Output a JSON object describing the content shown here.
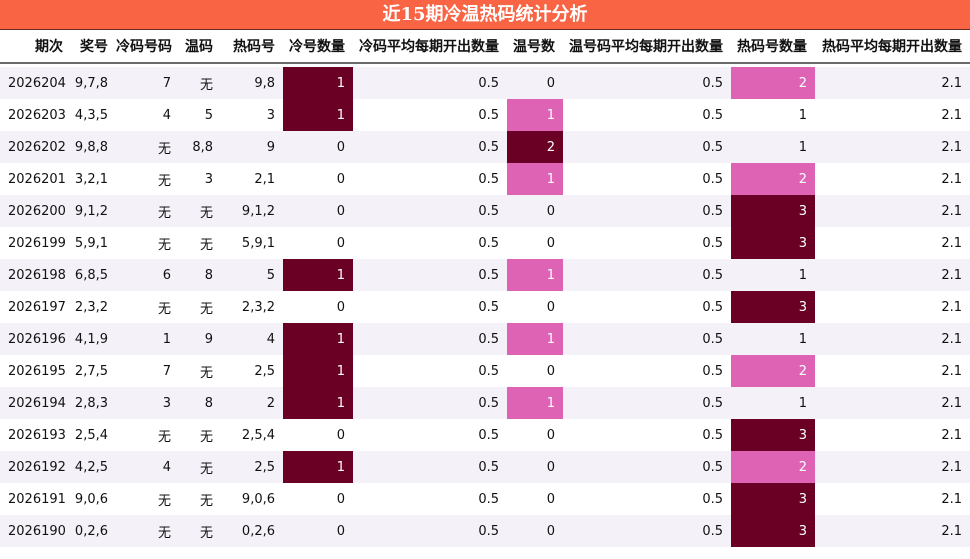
{
  "title": "近15期冷温热码统计分析",
  "colors": {
    "title_bg": "#f86444",
    "dark_highlight": "#6b0025",
    "pink_highlight": "#de63b4",
    "stripe": "#f4f2f8"
  },
  "headers": [
    "期次",
    "奖号",
    "冷码号码",
    "温码",
    "热码号",
    "冷号数量",
    "冷码平均每期开出数量",
    "温号数",
    "温号码平均每期开出数量",
    "热码号数量",
    "热码平均每期开出数量"
  ],
  "rows": [
    {
      "period": "2026204",
      "award": "9,7,8",
      "cold": "7",
      "warm": "无",
      "hot": "9,8",
      "cold_count": "1",
      "cold_avg": "0.5",
      "warm_count": "0",
      "warm_avg": "0.5",
      "hot_count": "2",
      "hot_avg": "2.1"
    },
    {
      "period": "2026203",
      "award": "4,3,5",
      "cold": "4",
      "warm": "5",
      "hot": "3",
      "cold_count": "1",
      "cold_avg": "0.5",
      "warm_count": "1",
      "warm_avg": "0.5",
      "hot_count": "1",
      "hot_avg": "2.1"
    },
    {
      "period": "2026202",
      "award": "9,8,8",
      "cold": "无",
      "warm": "8,8",
      "hot": "9",
      "cold_count": "0",
      "cold_avg": "0.5",
      "warm_count": "2",
      "warm_avg": "0.5",
      "hot_count": "1",
      "hot_avg": "2.1"
    },
    {
      "period": "2026201",
      "award": "3,2,1",
      "cold": "无",
      "warm": "3",
      "hot": "2,1",
      "cold_count": "0",
      "cold_avg": "0.5",
      "warm_count": "1",
      "warm_avg": "0.5",
      "hot_count": "2",
      "hot_avg": "2.1"
    },
    {
      "period": "2026200",
      "award": "9,1,2",
      "cold": "无",
      "warm": "无",
      "hot": "9,1,2",
      "cold_count": "0",
      "cold_avg": "0.5",
      "warm_count": "0",
      "warm_avg": "0.5",
      "hot_count": "3",
      "hot_avg": "2.1"
    },
    {
      "period": "2026199",
      "award": "5,9,1",
      "cold": "无",
      "warm": "无",
      "hot": "5,9,1",
      "cold_count": "0",
      "cold_avg": "0.5",
      "warm_count": "0",
      "warm_avg": "0.5",
      "hot_count": "3",
      "hot_avg": "2.1"
    },
    {
      "period": "2026198",
      "award": "6,8,5",
      "cold": "6",
      "warm": "8",
      "hot": "5",
      "cold_count": "1",
      "cold_avg": "0.5",
      "warm_count": "1",
      "warm_avg": "0.5",
      "hot_count": "1",
      "hot_avg": "2.1"
    },
    {
      "period": "2026197",
      "award": "2,3,2",
      "cold": "无",
      "warm": "无",
      "hot": "2,3,2",
      "cold_count": "0",
      "cold_avg": "0.5",
      "warm_count": "0",
      "warm_avg": "0.5",
      "hot_count": "3",
      "hot_avg": "2.1"
    },
    {
      "period": "2026196",
      "award": "4,1,9",
      "cold": "1",
      "warm": "9",
      "hot": "4",
      "cold_count": "1",
      "cold_avg": "0.5",
      "warm_count": "1",
      "warm_avg": "0.5",
      "hot_count": "1",
      "hot_avg": "2.1"
    },
    {
      "period": "2026195",
      "award": "2,7,5",
      "cold": "7",
      "warm": "无",
      "hot": "2,5",
      "cold_count": "1",
      "cold_avg": "0.5",
      "warm_count": "0",
      "warm_avg": "0.5",
      "hot_count": "2",
      "hot_avg": "2.1"
    },
    {
      "period": "2026194",
      "award": "2,8,3",
      "cold": "3",
      "warm": "8",
      "hot": "2",
      "cold_count": "1",
      "cold_avg": "0.5",
      "warm_count": "1",
      "warm_avg": "0.5",
      "hot_count": "1",
      "hot_avg": "2.1"
    },
    {
      "period": "2026193",
      "award": "2,5,4",
      "cold": "无",
      "warm": "无",
      "hot": "2,5,4",
      "cold_count": "0",
      "cold_avg": "0.5",
      "warm_count": "0",
      "warm_avg": "0.5",
      "hot_count": "3",
      "hot_avg": "2.1"
    },
    {
      "period": "2026192",
      "award": "4,2,5",
      "cold": "4",
      "warm": "无",
      "hot": "2,5",
      "cold_count": "1",
      "cold_avg": "0.5",
      "warm_count": "0",
      "warm_avg": "0.5",
      "hot_count": "2",
      "hot_avg": "2.1"
    },
    {
      "period": "2026191",
      "award": "9,0,6",
      "cold": "无",
      "warm": "无",
      "hot": "9,0,6",
      "cold_count": "0",
      "cold_avg": "0.5",
      "warm_count": "0",
      "warm_avg": "0.5",
      "hot_count": "3",
      "hot_avg": "2.1"
    },
    {
      "period": "2026190",
      "award": "0,2,6",
      "cold": "无",
      "warm": "无",
      "hot": "0,2,6",
      "cold_count": "0",
      "cold_avg": "0.5",
      "warm_count": "0",
      "warm_avg": "0.5",
      "hot_count": "3",
      "hot_avg": "2.1"
    }
  ]
}
